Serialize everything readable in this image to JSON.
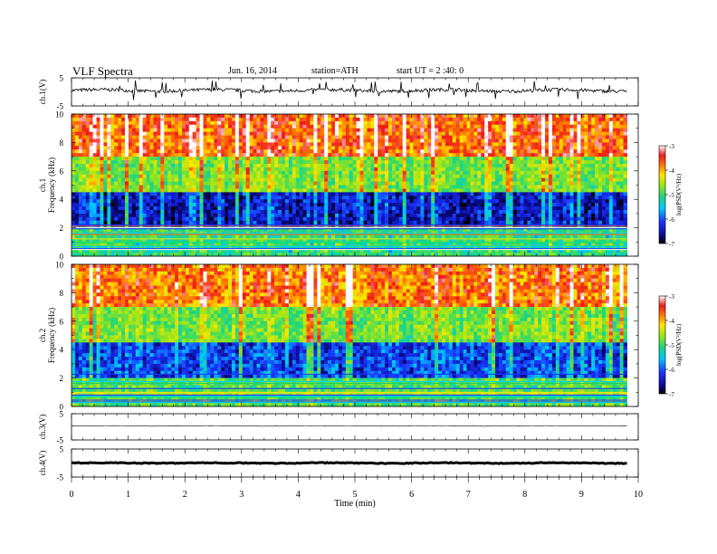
{
  "header": {
    "title": "VLF  Spectra",
    "date": "Jun. 16, 2014",
    "station": "station=ATH",
    "start": "start  UT =  2 :40: 0"
  },
  "chart_data": [
    {
      "type": "line",
      "panel": "ch1-waveform",
      "ylabel": "ch.1(V)",
      "yticks": [
        "5",
        "-5"
      ],
      "ylim": [
        -5,
        5
      ],
      "xlim": [
        0,
        10
      ],
      "description_values": {
        "mean_level": 0.5,
        "noise_amplitude": 0.6
      }
    },
    {
      "type": "heatmap",
      "panel": "ch1-spectrogram",
      "ylabel": "ch.1\nFrequency (kHz)",
      "ylabel_lines": [
        "ch.1",
        "Frequency  (kHz)"
      ],
      "yticks": [
        "0",
        "2",
        "4",
        "6",
        "8",
        "10"
      ],
      "ylim": [
        0,
        10
      ],
      "xlim": [
        0,
        9.8
      ],
      "colorbar": {
        "label": "log(PSD(V²/Hz)",
        "ticks": [
          "-3",
          "-4",
          "-5",
          "-6",
          "-7"
        ],
        "range": [
          -7,
          -3
        ]
      },
      "bands": [
        {
          "from": 0,
          "to": 2,
          "level": -5.2
        },
        {
          "from": 2,
          "to": 4.6,
          "level": -6.6
        },
        {
          "from": 4.6,
          "to": 7,
          "level": -4.8
        },
        {
          "from": 7,
          "to": 10,
          "level": -3.6
        }
      ]
    },
    {
      "type": "heatmap",
      "panel": "ch2-spectrogram",
      "ylabel_lines": [
        "ch.2",
        "Frequency  (kHz)"
      ],
      "yticks": [
        "0",
        "2",
        "4",
        "6",
        "8",
        "10"
      ],
      "ylim": [
        0,
        10
      ],
      "xlim": [
        0,
        9.8
      ],
      "colorbar": {
        "label": "log(PSD(V²/Hz)",
        "ticks": [
          "-3",
          "-4",
          "-5",
          "-6",
          "-7"
        ],
        "range": [
          -7,
          -3
        ]
      },
      "bands": [
        {
          "from": 0,
          "to": 2,
          "level": -5.0
        },
        {
          "from": 2,
          "to": 4.6,
          "level": -6.3
        },
        {
          "from": 4.6,
          "to": 7,
          "level": -4.8
        },
        {
          "from": 7,
          "to": 10,
          "level": -3.7
        }
      ]
    },
    {
      "type": "line",
      "panel": "ch3-waveform",
      "ylabel": "ch.3(V)",
      "yticks": [
        "5",
        "-5"
      ],
      "ylim": [
        -5,
        5
      ],
      "xlim": [
        0,
        9.8
      ],
      "description_values": {
        "mean_level": 0.3,
        "noise_amplitude": 0.05
      }
    },
    {
      "type": "line",
      "panel": "ch4-waveform",
      "ylabel": "ch.4(V)",
      "yticks": [
        "5",
        "-5"
      ],
      "ylim": [
        -5,
        5
      ],
      "xlim": [
        0,
        9.8
      ],
      "description_values": {
        "mean_level": 0.0,
        "noise_amplitude": 0.15
      }
    }
  ],
  "xaxis": {
    "label": "Time  (min)",
    "ticks": [
      "0",
      "1",
      "2",
      "3",
      "4",
      "5",
      "6",
      "7",
      "8",
      "9",
      "10"
    ],
    "range": [
      0,
      10
    ]
  }
}
